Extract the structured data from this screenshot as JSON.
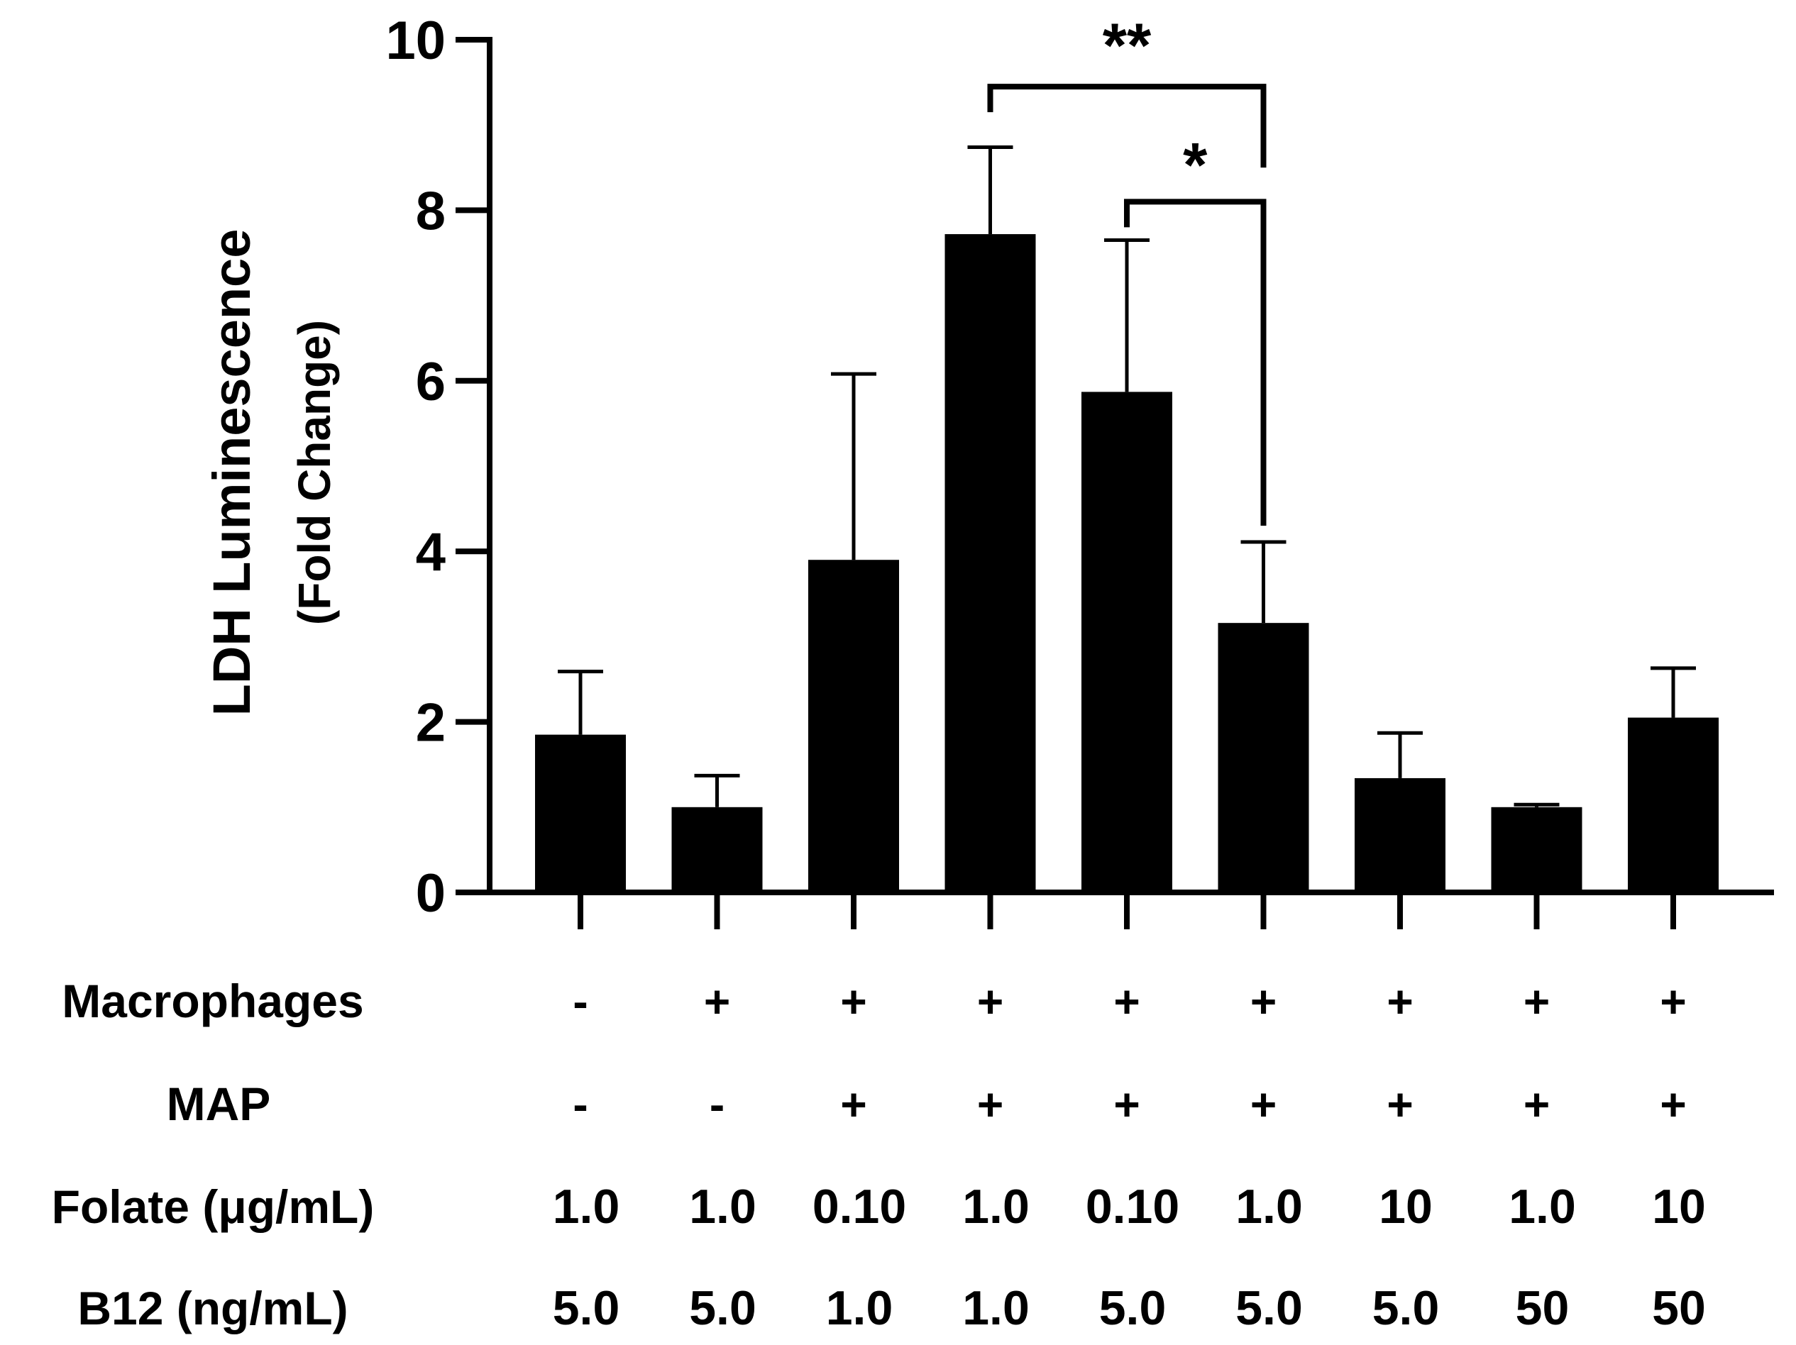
{
  "chart_data": {
    "type": "bar",
    "ylabel": "LDH Luminescence",
    "ylabel_sub": "(Fold Change)",
    "ylim": [
      0,
      10
    ],
    "yticks": [
      0,
      2,
      4,
      6,
      8,
      10
    ],
    "values": [
      1.85,
      1.0,
      3.9,
      7.72,
      5.87,
      3.16,
      1.34,
      1.0,
      2.05
    ],
    "errors": [
      0.74,
      0.37,
      2.18,
      1.02,
      1.78,
      0.95,
      0.53,
      0.03,
      0.58
    ],
    "bar_color": "#000000",
    "condition_rows": [
      {
        "label": "Macrophages",
        "values": [
          "-",
          "+",
          "+",
          "+",
          "+",
          "+",
          "+",
          "+",
          "+"
        ]
      },
      {
        "label": "MAP",
        "values": [
          "-",
          "-",
          "+",
          "+",
          "+",
          "+",
          "+",
          "+",
          "+"
        ]
      },
      {
        "label": "Folate (μg/mL)",
        "values": [
          "1.0",
          "1.0",
          "0.10",
          "1.0",
          "0.10",
          "1.0",
          "10",
          "1.0",
          "10"
        ]
      },
      {
        "label": "B12 (ng/mL)",
        "values": [
          "5.0",
          "5.0",
          "1.0",
          "1.0",
          "5.0",
          "5.0",
          "5.0",
          "50",
          "50"
        ]
      }
    ],
    "significance": [
      {
        "from_bar": 4,
        "to_bar": 6,
        "y_level": 9.45,
        "label": "**"
      },
      {
        "from_bar": 5,
        "to_bar": 6,
        "y_level": 8.1,
        "label": "*"
      }
    ]
  }
}
